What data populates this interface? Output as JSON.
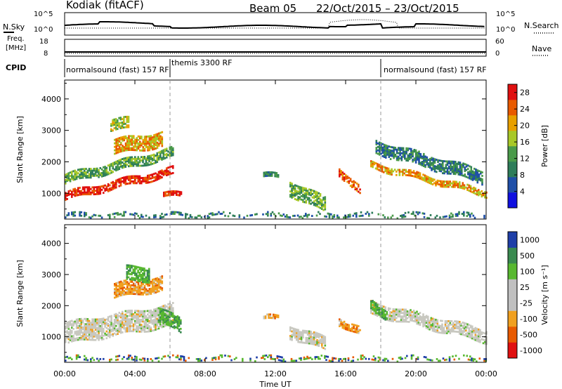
{
  "header": {
    "station": "Kodiak (fitACF)",
    "beam": "Beam 05",
    "date_range": "22/Oct/2015 – 23/Oct/2015"
  },
  "noise_panel": {
    "left_label": "N.Sky",
    "right_label": "N.Search",
    "left_ticks": [
      "10^5",
      "10^0"
    ],
    "right_ticks": [
      "10^5",
      "10^0"
    ]
  },
  "freq_panel": {
    "left_label": "Freq.",
    "left_unit": "[MHz]",
    "right_label": "Nave",
    "left_ticks": [
      "18",
      "8"
    ],
    "right_ticks": [
      "60",
      "0"
    ]
  },
  "cpid": {
    "label": "CPID",
    "segments": [
      "normalsound (fast) 157 RF",
      "themis 3300 RF",
      "normalsound (fast) 157 RF"
    ]
  },
  "colors": {
    "power_scale": [
      "#1010e0",
      "#1f4fa8",
      "#2e7d5a",
      "#4a9a4a",
      "#a8c828",
      "#e8a000",
      "#e85a00",
      "#e01010"
    ],
    "velocity_scale": [
      "#e01010",
      "#e85a00",
      "#f0a020",
      "#c0c0c0",
      "#c0c0c0",
      "#58b830",
      "#3a8a50",
      "#1f3fa8"
    ]
  },
  "chart_data": [
    {
      "type": "heatmap",
      "title": "",
      "xlabel": "",
      "ylabel": "Slant Range [km]",
      "colorbar_label": "Power [dB]",
      "colorbar_ticks": [
        "4",
        "8",
        "12",
        "16",
        "20",
        "24",
        "28"
      ],
      "colorbar_range": [
        0,
        30
      ],
      "y_ticks": [
        "1000",
        "2000",
        "3000",
        "4000"
      ],
      "ylim": [
        180,
        4600
      ],
      "x_ticks": [
        "00:00",
        "04:00",
        "08:00",
        "12:00",
        "16:00",
        "20:00",
        "00:00"
      ],
      "x_range_hours": [
        0,
        24
      ],
      "markers_hours": [
        6,
        18
      ],
      "regions": [
        {
          "t": [
            0.0,
            6.2
          ],
          "r_start": 900,
          "r_end": 1700,
          "width": 260,
          "power": 28
        },
        {
          "t": [
            0.0,
            6.2
          ],
          "r_start": 1450,
          "r_end": 2300,
          "width": 320,
          "power": 14
        },
        {
          "t": [
            2.8,
            5.5
          ],
          "r_start": 2450,
          "r_end": 2700,
          "width": 450,
          "power": 22
        },
        {
          "t": [
            2.6,
            3.6
          ],
          "r_start": 3150,
          "r_end": 3200,
          "width": 350,
          "power": 16
        },
        {
          "t": [
            5.6,
            6.6
          ],
          "r_start": 950,
          "r_end": 950,
          "width": 160,
          "power": 27
        },
        {
          "t": [
            11.3,
            12.2
          ],
          "r_start": 1550,
          "r_end": 1550,
          "width": 150,
          "power": 10
        },
        {
          "t": [
            12.8,
            14.8
          ],
          "r_start": 1150,
          "r_end": 600,
          "width": 450,
          "power": 12
        },
        {
          "t": [
            15.6,
            16.8
          ],
          "r_start": 1700,
          "r_end": 1050,
          "width": 250,
          "power": 24
        },
        {
          "t": [
            17.4,
            24.0
          ],
          "r_start": 1900,
          "r_end": 1000,
          "width": 220,
          "power": 22
        },
        {
          "t": [
            17.7,
            23.8
          ],
          "r_start": 2450,
          "r_end": 1500,
          "width": 400,
          "power": 10
        },
        {
          "t": [
            0.0,
            24.0
          ],
          "r_start": 280,
          "r_end": 280,
          "width": 140,
          "power": 8
        }
      ]
    },
    {
      "type": "heatmap",
      "title": "",
      "xlabel": "Time UT",
      "ylabel": "Slant Range [km]",
      "colorbar_label": "Velocity [m s⁻¹]",
      "colorbar_ticks": [
        "1000",
        "500",
        "100",
        "25",
        "-25",
        "-100",
        "-500",
        "-1000"
      ],
      "y_ticks": [
        "1000",
        "2000",
        "3000",
        "4000"
      ],
      "ylim": [
        180,
        4600
      ],
      "x_ticks": [
        "00:00",
        "04:00",
        "08:00",
        "12:00",
        "16:00",
        "20:00",
        "00:00"
      ],
      "x_range_hours": [
        0,
        24
      ],
      "markers_hours": [
        6,
        18
      ],
      "regions": [
        {
          "t": [
            0.0,
            6.2
          ],
          "r_start": 1100,
          "r_end": 1700,
          "width": 700,
          "velocity": 0
        },
        {
          "t": [
            2.8,
            5.5
          ],
          "r_start": 2450,
          "r_end": 2700,
          "width": 450,
          "velocity": -200
        },
        {
          "t": [
            3.5,
            4.8
          ],
          "r_start": 3000,
          "r_end": 3000,
          "width": 450,
          "velocity": 150
        },
        {
          "t": [
            5.3,
            6.6
          ],
          "r_start": 1700,
          "r_end": 1300,
          "width": 450,
          "velocity": 200
        },
        {
          "t": [
            11.3,
            12.2
          ],
          "r_start": 1600,
          "r_end": 1600,
          "width": 150,
          "velocity": -200
        },
        {
          "t": [
            12.8,
            14.8
          ],
          "r_start": 1150,
          "r_end": 750,
          "width": 400,
          "velocity": 0
        },
        {
          "t": [
            15.6,
            16.8
          ],
          "r_start": 1500,
          "r_end": 1150,
          "width": 250,
          "velocity": -200
        },
        {
          "t": [
            17.4,
            24.0
          ],
          "r_start": 1900,
          "r_end": 1000,
          "width": 400,
          "velocity": 0
        },
        {
          "t": [
            17.4,
            18.3
          ],
          "r_start": 2000,
          "r_end": 1700,
          "width": 300,
          "velocity": 150
        },
        {
          "t": [
            0.0,
            24.0
          ],
          "r_start": 280,
          "r_end": 280,
          "width": 140,
          "velocity": 50
        }
      ]
    }
  ]
}
